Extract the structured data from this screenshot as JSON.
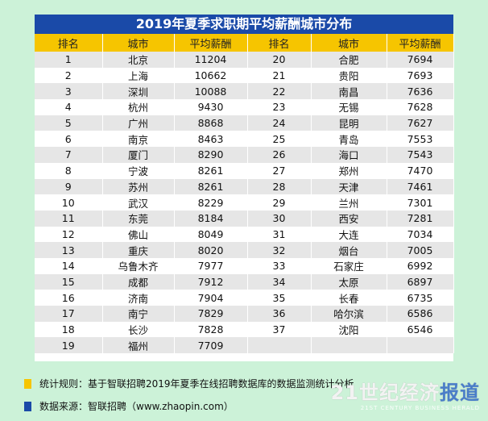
{
  "title": "2019年夏季求职期平均薪酬城市分布",
  "headers": [
    "排名",
    "城市",
    "平均薪酬",
    "排名",
    "城市",
    "平均薪酬"
  ],
  "left": [
    [
      "1",
      "北京",
      "11204"
    ],
    [
      "2",
      "上海",
      "10662"
    ],
    [
      "3",
      "深圳",
      "10088"
    ],
    [
      "4",
      "杭州",
      "9430"
    ],
    [
      "5",
      "广州",
      "8868"
    ],
    [
      "6",
      "南京",
      "8463"
    ],
    [
      "7",
      "厦门",
      "8290"
    ],
    [
      "8",
      "宁波",
      "8261"
    ],
    [
      "9",
      "苏州",
      "8261"
    ],
    [
      "10",
      "武汉",
      "8229"
    ],
    [
      "11",
      "东莞",
      "8184"
    ],
    [
      "12",
      "佛山",
      "8049"
    ],
    [
      "13",
      "重庆",
      "8020"
    ],
    [
      "14",
      "乌鲁木齐",
      "7977"
    ],
    [
      "15",
      "成都",
      "7912"
    ],
    [
      "16",
      "济南",
      "7904"
    ],
    [
      "17",
      "南宁",
      "7829"
    ],
    [
      "18",
      "长沙",
      "7828"
    ],
    [
      "19",
      "福州",
      "7709"
    ]
  ],
  "right": [
    [
      "20",
      "合肥",
      "7694"
    ],
    [
      "21",
      "贵阳",
      "7693"
    ],
    [
      "22",
      "南昌",
      "7636"
    ],
    [
      "23",
      "无锡",
      "7628"
    ],
    [
      "24",
      "昆明",
      "7627"
    ],
    [
      "25",
      "青岛",
      "7553"
    ],
    [
      "26",
      "海口",
      "7543"
    ],
    [
      "27",
      "郑州",
      "7470"
    ],
    [
      "28",
      "天津",
      "7461"
    ],
    [
      "29",
      "兰州",
      "7301"
    ],
    [
      "30",
      "西安",
      "7281"
    ],
    [
      "31",
      "大连",
      "7034"
    ],
    [
      "32",
      "烟台",
      "7005"
    ],
    [
      "33",
      "石家庄",
      "6992"
    ],
    [
      "34",
      "太原",
      "6897"
    ],
    [
      "35",
      "长春",
      "6735"
    ],
    [
      "36",
      "哈尔滨",
      "6586"
    ],
    [
      "37",
      "沈阳",
      "6546"
    ]
  ],
  "notes": [
    {
      "text": "统计规则：基于智联招聘2019年夏季在线招聘数据库的数据监测统计分析",
      "color": "#f6c500"
    },
    {
      "text": "数据来源：智联招聘（www.zhaopin.com）",
      "color": "#1a4aa8"
    }
  ],
  "watermark": {
    "main_a": "21世纪经济",
    "main_b": "报道",
    "sub": "21ST CENTURY BUSINESS HERALD"
  }
}
